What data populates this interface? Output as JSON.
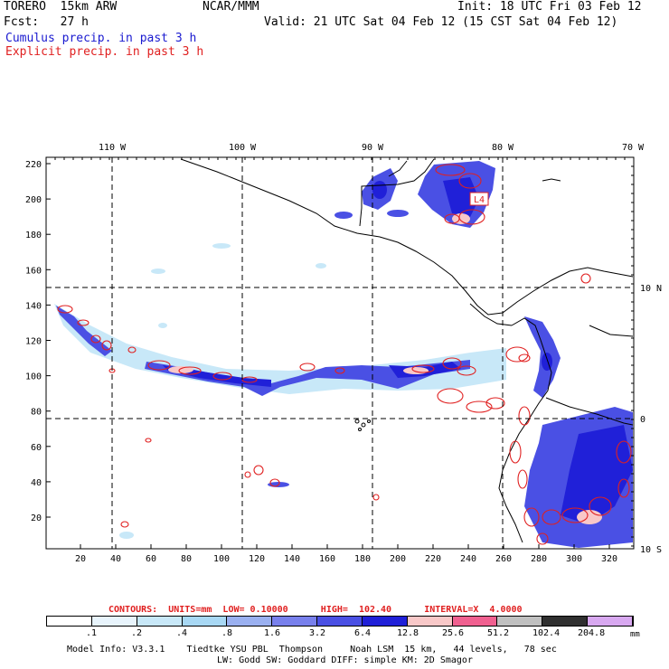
{
  "header": {
    "model": "TORERO  15km ARW",
    "org": "NCAR/MMM",
    "init": "Init: 18 UTC Fri 03 Feb 12",
    "fcst": "Fcst:   27 h",
    "valid": "Valid: 21 UTC Sat 04 Feb 12 (15 CST Sat 04 Feb 12)",
    "cumulus": "Cumulus precip. in past 3 h",
    "explicit": "Explicit precip. in past 3 h"
  },
  "map": {
    "top_lon_labels": [
      "110 W",
      "100 W",
      "90 W",
      "80 W",
      "70 W"
    ],
    "right_lat_labels": [
      "10 N",
      "0",
      "10 S"
    ],
    "left_ticks": [
      "220",
      "200",
      "180",
      "160",
      "140",
      "120",
      "100",
      "80",
      "60",
      "40",
      "20"
    ],
    "bottom_ticks": [
      "20",
      "40",
      "60",
      "80",
      "100",
      "120",
      "140",
      "160",
      "180",
      "200",
      "220",
      "240",
      "260",
      "280",
      "300",
      "320"
    ],
    "box_label": "L4"
  },
  "contours": {
    "label": "CONTOURS:  UNITS=mm  LOW= 0.10000      HIGH=  102.40      INTERVAL=X  4.0000"
  },
  "colorbar": {
    "colors": [
      "#ffffff",
      "#e8f4fc",
      "#c8e8f8",
      "#a8d8f4",
      "#9ab0f0",
      "#7880ec",
      "#4a50e4",
      "#2020d8",
      "#f8c8c8",
      "#f06090",
      "#c0c0c0",
      "#303030",
      "#d8a8f0"
    ],
    "labels": [
      ".1",
      ".2",
      ".4",
      ".8",
      "1.6",
      "3.2",
      "6.4",
      "12.8",
      "25.6",
      "51.2",
      "102.4",
      "204.8"
    ],
    "unit": "mm"
  },
  "footer": {
    "line1": "Model Info: V3.3.1    Tiedtke YSU PBL  Thompson     Noah LSM  15 km,   44 levels,   78 sec",
    "line2": "LW: Godd SW: Goddard DIFF: simple KM: 2D Smagor"
  }
}
